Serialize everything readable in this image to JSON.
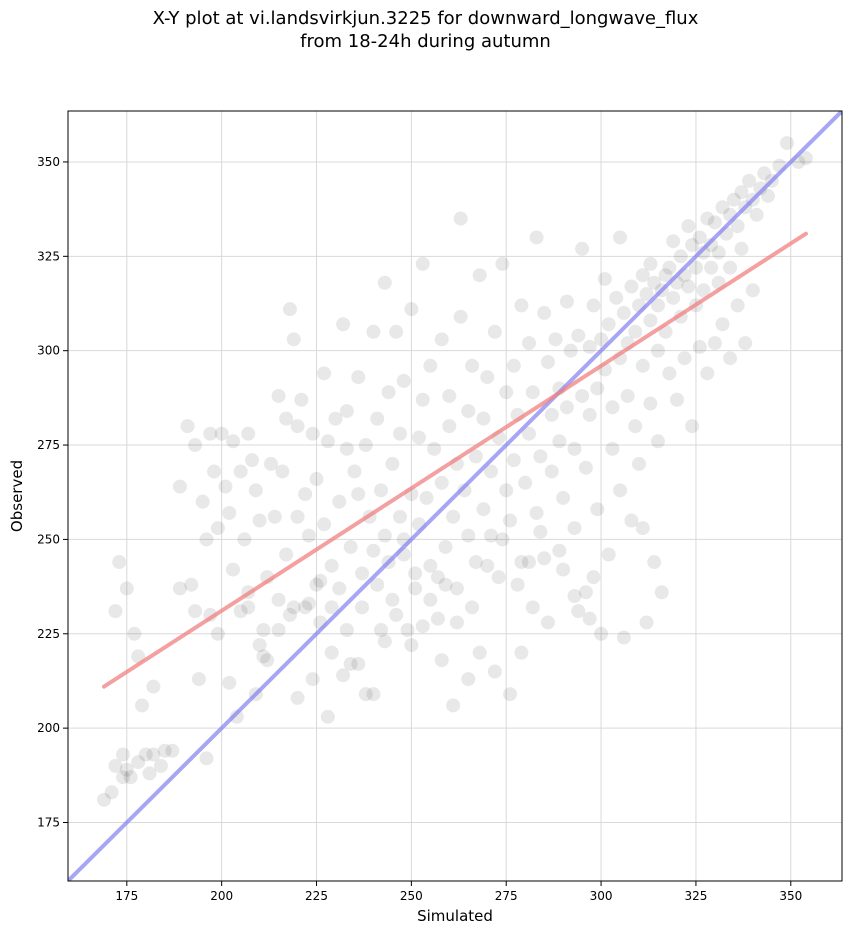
{
  "chart_data": {
    "type": "scatter",
    "title": "X-Y plot at vi.landsvirkjun.3225 for downward_longwave_flux",
    "subtitle": "from 18-24h during autumn",
    "xlabel": "Simulated",
    "ylabel": "Observed",
    "xlim": [
      159.5,
      363.5
    ],
    "ylim": [
      159.5,
      363.5
    ],
    "x_ticks": [
      175,
      200,
      225,
      250,
      275,
      300,
      325,
      350
    ],
    "y_ticks": [
      175,
      200,
      225,
      250,
      275,
      300,
      325,
      350
    ],
    "grid": true,
    "point_color": "#000000",
    "point_alpha": 0.09,
    "points": [
      [
        169,
        181
      ],
      [
        171,
        183
      ],
      [
        172,
        190
      ],
      [
        172,
        231
      ],
      [
        173,
        244
      ],
      [
        174,
        187
      ],
      [
        174,
        193
      ],
      [
        175,
        189
      ],
      [
        175,
        237
      ],
      [
        176,
        187
      ],
      [
        177,
        225
      ],
      [
        178,
        191
      ],
      [
        178,
        219
      ],
      [
        179,
        206
      ],
      [
        180,
        193
      ],
      [
        181,
        188
      ],
      [
        182,
        193
      ],
      [
        182,
        211
      ],
      [
        184,
        190
      ],
      [
        185,
        194
      ],
      [
        187,
        194
      ],
      [
        189,
        237
      ],
      [
        189,
        264
      ],
      [
        191,
        280
      ],
      [
        192,
        238
      ],
      [
        193,
        275
      ],
      [
        193,
        231
      ],
      [
        194,
        213
      ],
      [
        195,
        260
      ],
      [
        196,
        250
      ],
      [
        196,
        192
      ],
      [
        197,
        278
      ],
      [
        197,
        230
      ],
      [
        198,
        268
      ],
      [
        199,
        253
      ],
      [
        199,
        225
      ],
      [
        200,
        278
      ],
      [
        201,
        264
      ],
      [
        202,
        212
      ],
      [
        202,
        257
      ],
      [
        203,
        276
      ],
      [
        203,
        242
      ],
      [
        204,
        203
      ],
      [
        205,
        231
      ],
      [
        205,
        268
      ],
      [
        206,
        250
      ],
      [
        207,
        278
      ],
      [
        207,
        236
      ],
      [
        208,
        271
      ],
      [
        209,
        209
      ],
      [
        209,
        263
      ],
      [
        210,
        222
      ],
      [
        210,
        255
      ],
      [
        211,
        219
      ],
      [
        212,
        218
      ],
      [
        212,
        240
      ],
      [
        213,
        270
      ],
      [
        214,
        256
      ],
      [
        215,
        288
      ],
      [
        215,
        234
      ],
      [
        216,
        268
      ],
      [
        217,
        282
      ],
      [
        217,
        246
      ],
      [
        218,
        230
      ],
      [
        218,
        311
      ],
      [
        219,
        303
      ],
      [
        220,
        280
      ],
      [
        220,
        256
      ],
      [
        221,
        287
      ],
      [
        222,
        262
      ],
      [
        222,
        232
      ],
      [
        223,
        251
      ],
      [
        224,
        278
      ],
      [
        225,
        238
      ],
      [
        225,
        266
      ],
      [
        226,
        239
      ],
      [
        227,
        294
      ],
      [
        227,
        254
      ],
      [
        228,
        276
      ],
      [
        229,
        243
      ],
      [
        229,
        220
      ],
      [
        230,
        282
      ],
      [
        231,
        260
      ],
      [
        231,
        237
      ],
      [
        232,
        307
      ],
      [
        233,
        274
      ],
      [
        233,
        284
      ],
      [
        234,
        248
      ],
      [
        234,
        217
      ],
      [
        235,
        268
      ],
      [
        236,
        262
      ],
      [
        236,
        293
      ],
      [
        237,
        241
      ],
      [
        238,
        275
      ],
      [
        238,
        209
      ],
      [
        239,
        256
      ],
      [
        240,
        305
      ],
      [
        240,
        247
      ],
      [
        241,
        282
      ],
      [
        242,
        226
      ],
      [
        242,
        263
      ],
      [
        243,
        318
      ],
      [
        243,
        251
      ],
      [
        244,
        289
      ],
      [
        245,
        270
      ],
      [
        245,
        234
      ],
      [
        246,
        305
      ],
      [
        247,
        256
      ],
      [
        247,
        278
      ],
      [
        248,
        246
      ],
      [
        248,
        292
      ],
      [
        249,
        226
      ],
      [
        250,
        262
      ],
      [
        250,
        311
      ],
      [
        251,
        241
      ],
      [
        252,
        277
      ],
      [
        252,
        254
      ],
      [
        253,
        323
      ],
      [
        253,
        287
      ],
      [
        254,
        261
      ],
      [
        255,
        243
      ],
      [
        255,
        296
      ],
      [
        256,
        274
      ],
      [
        257,
        240
      ],
      [
        257,
        229
      ],
      [
        258,
        265
      ],
      [
        258,
        303
      ],
      [
        259,
        248
      ],
      [
        260,
        280
      ],
      [
        260,
        288
      ],
      [
        261,
        256
      ],
      [
        262,
        270
      ],
      [
        262,
        237
      ],
      [
        263,
        335
      ],
      [
        263,
        309
      ],
      [
        264,
        263
      ],
      [
        265,
        284
      ],
      [
        265,
        251
      ],
      [
        266,
        296
      ],
      [
        267,
        272
      ],
      [
        267,
        244
      ],
      [
        268,
        320
      ],
      [
        269,
        258
      ],
      [
        269,
        282
      ],
      [
        270,
        293
      ],
      [
        271,
        268
      ],
      [
        271,
        251
      ],
      [
        272,
        305
      ],
      [
        273,
        240
      ],
      [
        273,
        277
      ],
      [
        274,
        323
      ],
      [
        275,
        263
      ],
      [
        275,
        289
      ],
      [
        276,
        255
      ],
      [
        277,
        296
      ],
      [
        277,
        271
      ],
      [
        278,
        283
      ],
      [
        279,
        312
      ],
      [
        279,
        244
      ],
      [
        280,
        265
      ],
      [
        281,
        302
      ],
      [
        281,
        278
      ],
      [
        282,
        289
      ],
      [
        283,
        257
      ],
      [
        283,
        330
      ],
      [
        284,
        272
      ],
      [
        285,
        310
      ],
      [
        285,
        245
      ],
      [
        286,
        297
      ],
      [
        287,
        283
      ],
      [
        287,
        268
      ],
      [
        288,
        303
      ],
      [
        289,
        276
      ],
      [
        289,
        290
      ],
      [
        290,
        261
      ],
      [
        291,
        313
      ],
      [
        291,
        285
      ],
      [
        292,
        300
      ],
      [
        293,
        274
      ],
      [
        293,
        253
      ],
      [
        294,
        304
      ],
      [
        295,
        288
      ],
      [
        295,
        327
      ],
      [
        296,
        269
      ],
      [
        297,
        301
      ],
      [
        297,
        283
      ],
      [
        298,
        312
      ],
      [
        299,
        290
      ],
      [
        299,
        258
      ],
      [
        300,
        303
      ],
      [
        301,
        295
      ],
      [
        301,
        319
      ],
      [
        302,
        307
      ],
      [
        303,
        285
      ],
      [
        303,
        274
      ],
      [
        304,
        314
      ],
      [
        305,
        298
      ],
      [
        305,
        330
      ],
      [
        306,
        310
      ],
      [
        307,
        302
      ],
      [
        307,
        288
      ],
      [
        308,
        317
      ],
      [
        309,
        305
      ],
      [
        309,
        280
      ],
      [
        310,
        312
      ],
      [
        311,
        320
      ],
      [
        311,
        296
      ],
      [
        312,
        315
      ],
      [
        313,
        308
      ],
      [
        313,
        323
      ],
      [
        314,
        318
      ],
      [
        315,
        312
      ],
      [
        315,
        300
      ],
      [
        316,
        316
      ],
      [
        317,
        320
      ],
      [
        317,
        305
      ],
      [
        318,
        322
      ],
      [
        319,
        314
      ],
      [
        319,
        329
      ],
      [
        320,
        318
      ],
      [
        321,
        325
      ],
      [
        321,
        309
      ],
      [
        322,
        320
      ],
      [
        323,
        317
      ],
      [
        323,
        333
      ],
      [
        324,
        328
      ],
      [
        325,
        312
      ],
      [
        325,
        322
      ],
      [
        326,
        330
      ],
      [
        327,
        326
      ],
      [
        327,
        316
      ],
      [
        328,
        335
      ],
      [
        329,
        322
      ],
      [
        329,
        328
      ],
      [
        330,
        334
      ],
      [
        331,
        318
      ],
      [
        331,
        326
      ],
      [
        332,
        338
      ],
      [
        333,
        331
      ],
      [
        334,
        336
      ],
      [
        334,
        322
      ],
      [
        335,
        340
      ],
      [
        336,
        333
      ],
      [
        337,
        342
      ],
      [
        337,
        327
      ],
      [
        338,
        338
      ],
      [
        339,
        345
      ],
      [
        340,
        340
      ],
      [
        341,
        336
      ],
      [
        342,
        343
      ],
      [
        343,
        347
      ],
      [
        344,
        341
      ],
      [
        345,
        345
      ],
      [
        347,
        349
      ],
      [
        349,
        355
      ],
      [
        352,
        350
      ],
      [
        354,
        351
      ],
      [
        305,
        263
      ],
      [
        308,
        255
      ],
      [
        310,
        270
      ],
      [
        313,
        286
      ],
      [
        315,
        276
      ],
      [
        318,
        294
      ],
      [
        320,
        287
      ],
      [
        322,
        298
      ],
      [
        324,
        280
      ],
      [
        326,
        301
      ],
      [
        328,
        294
      ],
      [
        330,
        302
      ],
      [
        332,
        307
      ],
      [
        334,
        298
      ],
      [
        336,
        312
      ],
      [
        338,
        302
      ],
      [
        340,
        316
      ],
      [
        302,
        246
      ],
      [
        298,
        240
      ],
      [
        296,
        236
      ],
      [
        294,
        231
      ],
      [
        290,
        242
      ],
      [
        286,
        228
      ],
      [
        282,
        232
      ],
      [
        279,
        220
      ],
      [
        276,
        209
      ],
      [
        272,
        215
      ],
      [
        268,
        220
      ],
      [
        265,
        213
      ],
      [
        261,
        206
      ],
      [
        258,
        218
      ],
      [
        253,
        227
      ],
      [
        250,
        222
      ],
      [
        246,
        230
      ],
      [
        243,
        223
      ],
      [
        240,
        209
      ],
      [
        236,
        217
      ],
      [
        232,
        214
      ],
      [
        228,
        203
      ],
      [
        224,
        213
      ],
      [
        220,
        208
      ],
      [
        311,
        253
      ],
      [
        314,
        244
      ],
      [
        316,
        236
      ],
      [
        312,
        228
      ],
      [
        306,
        224
      ],
      [
        300,
        225
      ],
      [
        297,
        229
      ],
      [
        293,
        235
      ],
      [
        289,
        247
      ],
      [
        284,
        252
      ],
      [
        281,
        244
      ],
      [
        278,
        238
      ],
      [
        274,
        250
      ],
      [
        270,
        243
      ],
      [
        266,
        232
      ],
      [
        262,
        228
      ],
      [
        259,
        238
      ],
      [
        255,
        234
      ],
      [
        251,
        237
      ],
      [
        248,
        250
      ],
      [
        244,
        244
      ],
      [
        241,
        238
      ],
      [
        237,
        232
      ],
      [
        233,
        226
      ],
      [
        229,
        232
      ],
      [
        226,
        228
      ],
      [
        223,
        233
      ],
      [
        219,
        232
      ],
      [
        215,
        226
      ],
      [
        211,
        226
      ],
      [
        207,
        232
      ]
    ],
    "fit_line": {
      "color": "#f08080",
      "x": [
        169,
        354
      ],
      "y": [
        211,
        331
      ]
    },
    "identity_line": {
      "color": "#8080f0",
      "x": [
        159.5,
        363.5
      ],
      "y": [
        159.5,
        363.5
      ]
    }
  }
}
